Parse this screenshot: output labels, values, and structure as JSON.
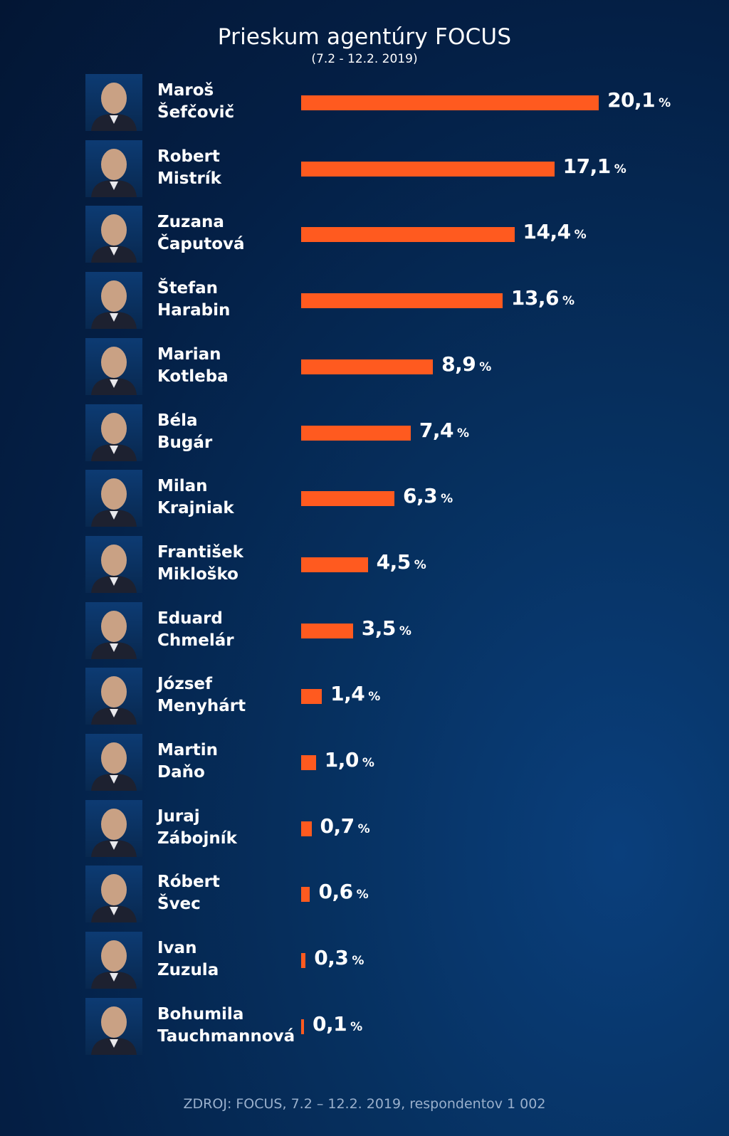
{
  "chart_data": {
    "type": "bar",
    "orientation": "horizontal",
    "title": "Prieskum agentúry FOCUS",
    "subtitle": "(7.2 - 12.2. 2019)",
    "source": "ZDROJ: FOCUS, 7.2 – 12.2. 2019, respondentov 1 002",
    "unit": "%",
    "bar_color": "#ff5a1f",
    "categories": [
      "Maroš\nŠefčovič",
      "Robert\nMistrík",
      "Zuzana\nČaputová",
      "Štefan\nHarabin",
      "Marian\nKotleba",
      "Béla\nBugár",
      "Milan\nKrajniak",
      "František\nMikloško",
      "Eduard\nChmelár",
      "József\nMenyhárt",
      "Martin\nDaňo",
      "Juraj\nZábojník",
      "Róbert\nŠvec",
      "Ivan\nZuzula",
      "Bohumila\nTauchmannová"
    ],
    "values": [
      20.1,
      17.1,
      14.4,
      13.6,
      8.9,
      7.4,
      6.3,
      4.5,
      3.5,
      1.4,
      1.0,
      0.7,
      0.6,
      0.3,
      0.1
    ],
    "value_labels": [
      "20,1",
      "17,1",
      "14,4",
      "13,6",
      "8,9",
      "7,4",
      "6,3",
      "4,5",
      "3,5",
      "1,4",
      "1,0",
      "0,7",
      "0,6",
      "0,3",
      "0,1"
    ],
    "photo_icon": "portrait-photo-icon"
  }
}
